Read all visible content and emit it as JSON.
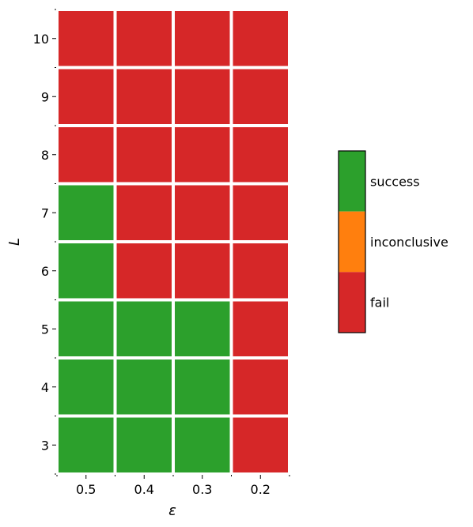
{
  "chart_data": {
    "type": "heatmap",
    "x": [
      "0.5",
      "0.4",
      "0.3",
      "0.2"
    ],
    "y": [
      "3",
      "4",
      "5",
      "6",
      "7",
      "8",
      "9",
      "10"
    ],
    "xlabel": "ε",
    "ylabel": "L",
    "status_colors": {
      "success": "#2ca02c",
      "inconclusive": "#ff7f0e",
      "fail": "#d62728"
    },
    "values": [
      [
        "success",
        "success",
        "success",
        "fail"
      ],
      [
        "success",
        "success",
        "success",
        "fail"
      ],
      [
        "success",
        "success",
        "success",
        "fail"
      ],
      [
        "success",
        "fail",
        "fail",
        "fail"
      ],
      [
        "success",
        "fail",
        "fail",
        "fail"
      ],
      [
        "fail",
        "fail",
        "fail",
        "fail"
      ],
      [
        "fail",
        "fail",
        "fail",
        "fail"
      ],
      [
        "fail",
        "fail",
        "fail",
        "fail"
      ]
    ],
    "legend": {
      "entries": [
        "success",
        "inconclusive",
        "fail"
      ],
      "placement": "right"
    }
  }
}
